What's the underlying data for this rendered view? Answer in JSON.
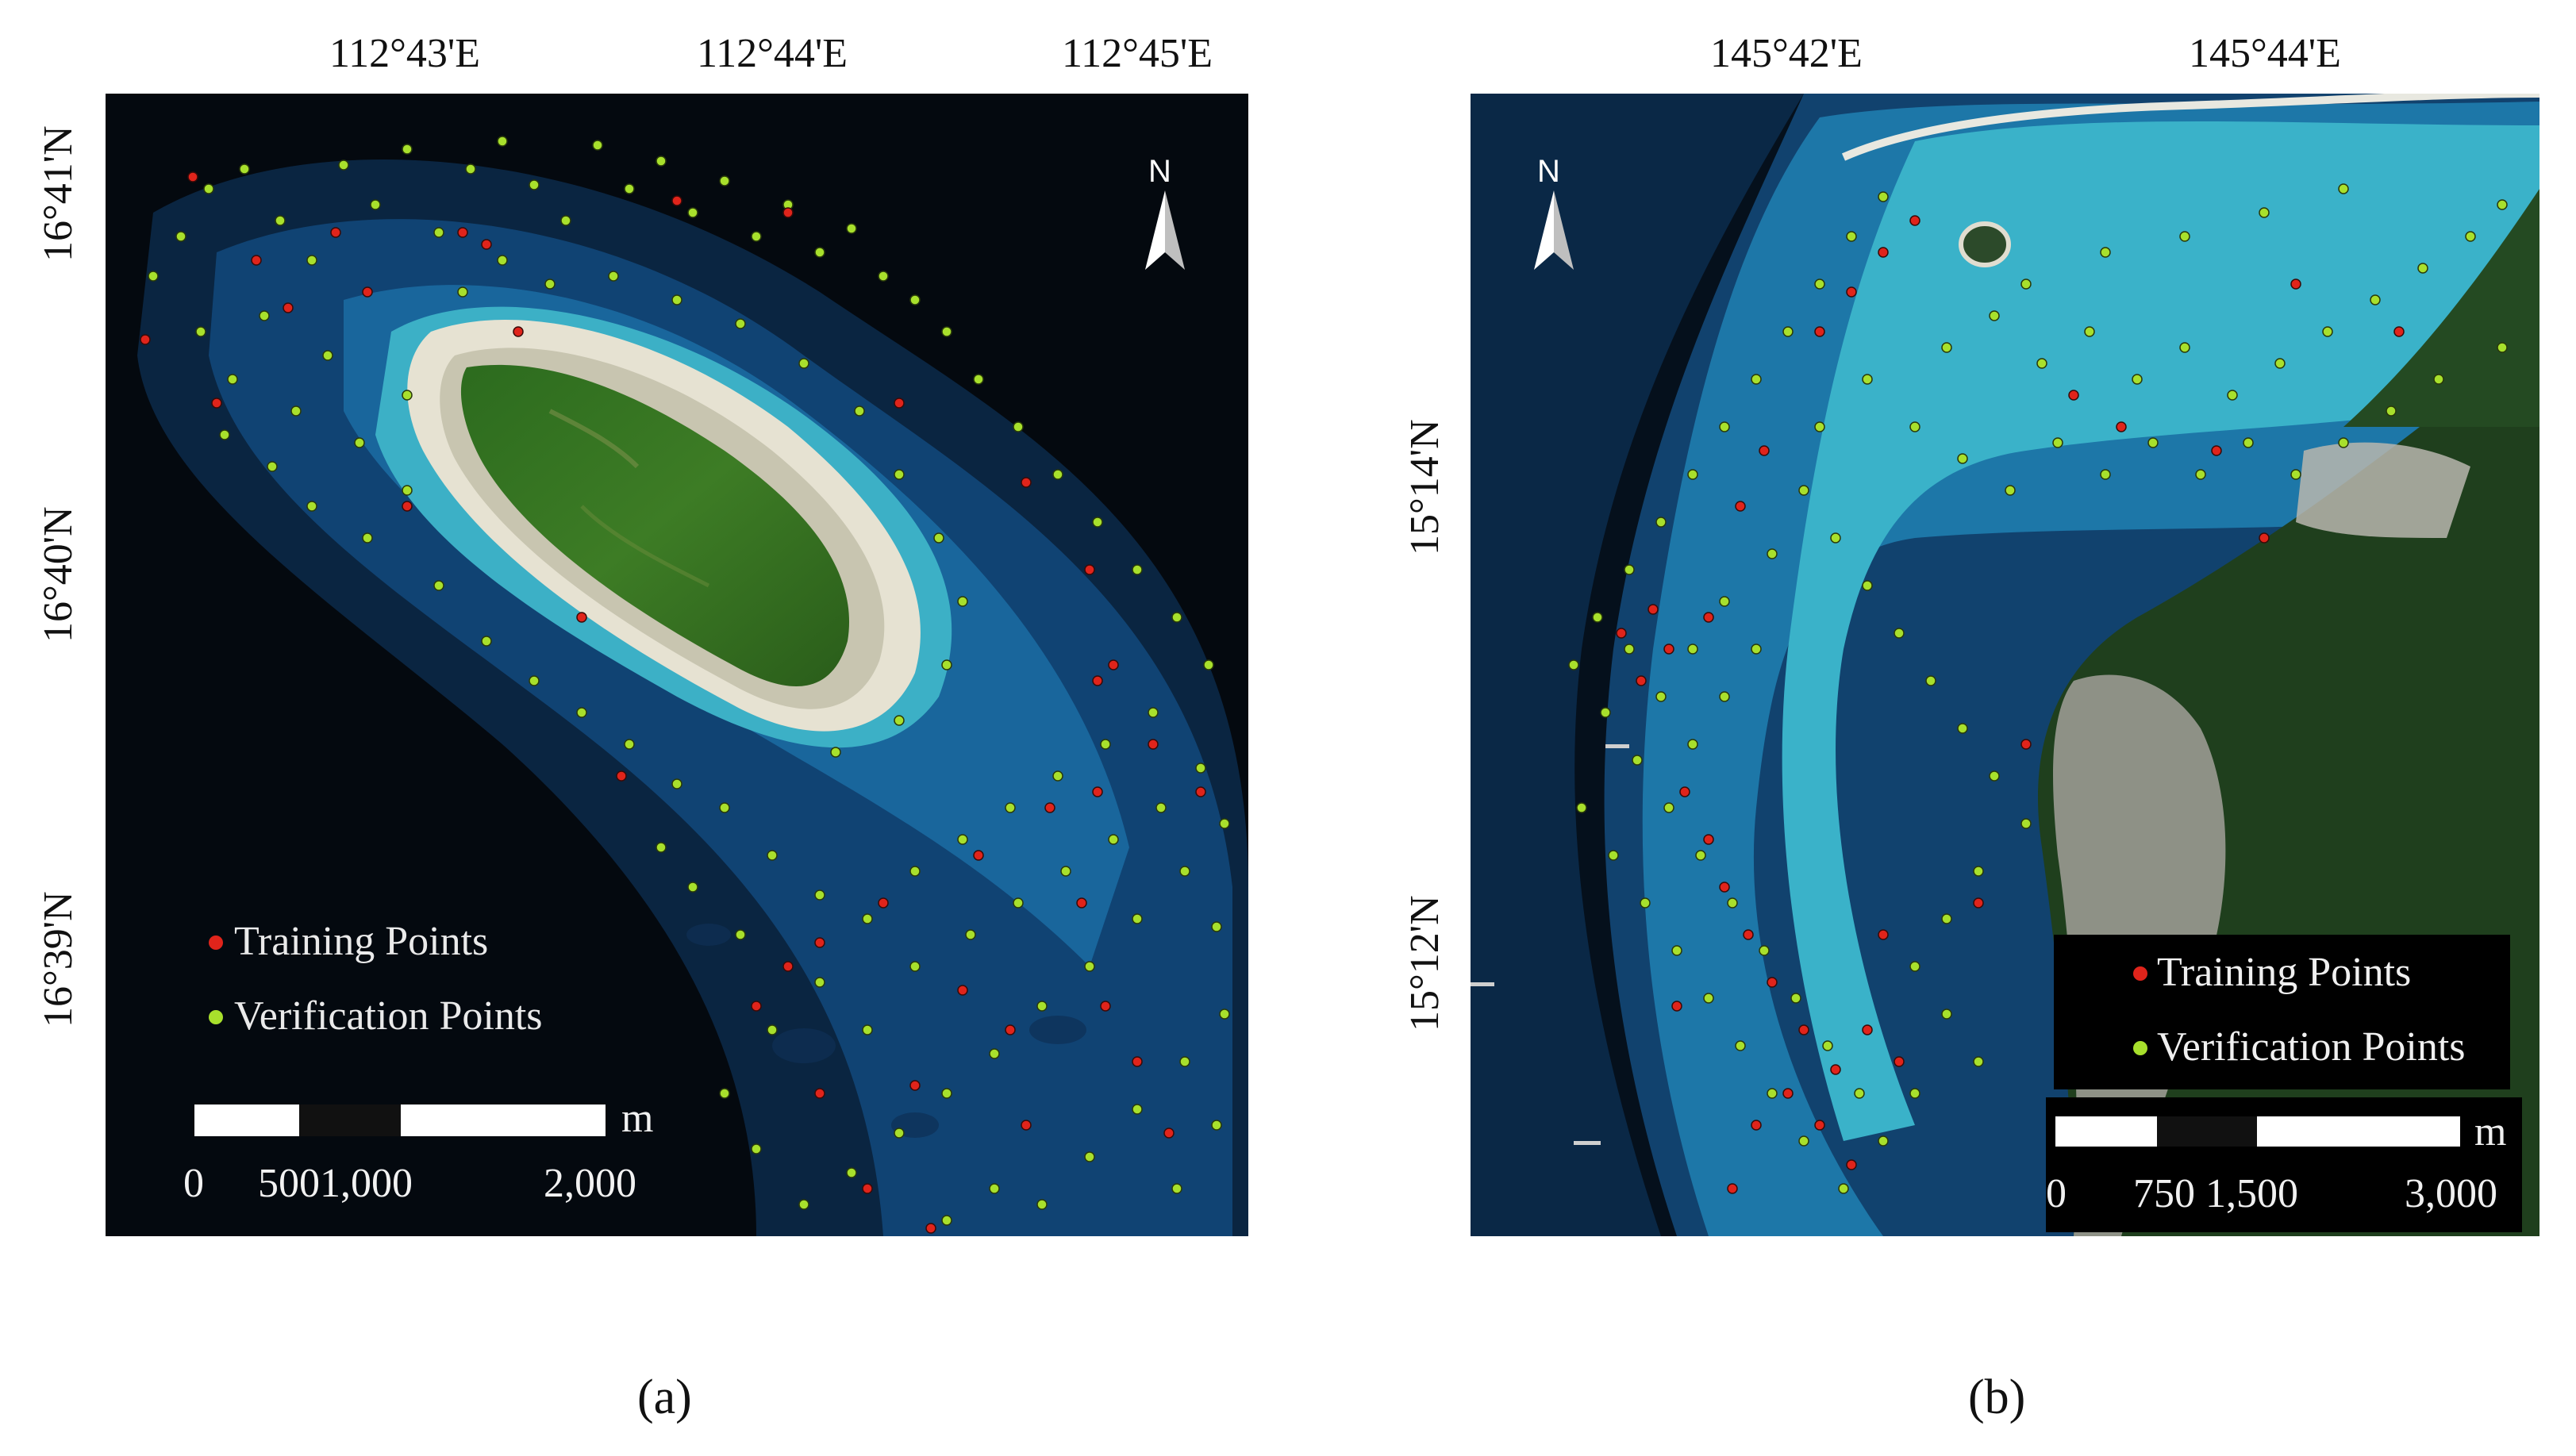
{
  "panels": {
    "a": {
      "caption": "(a)",
      "lon_labels": [
        "112°43'E",
        "112°44'E",
        "112°45'E"
      ],
      "lat_labels": [
        "16°41'N",
        "16°40'N",
        "16°39'N"
      ],
      "north": "N",
      "legend": {
        "training": "Training Points",
        "verification": "Verification Points"
      },
      "scale": {
        "unit": "m",
        "ticks": [
          "0",
          "5001,000",
          "2,000"
        ]
      }
    },
    "b": {
      "caption": "(b)",
      "lon_labels": [
        "145°42'E",
        "145°44'E"
      ],
      "lat_labels": [
        "15°14'N",
        "15°12'N"
      ],
      "north": "N",
      "legend": {
        "training": "Training Points",
        "verification": "Verification Points"
      },
      "scale": {
        "unit": "m",
        "ticks": [
          "0",
          "750 1,500",
          "3,000"
        ]
      }
    }
  },
  "colors": {
    "training": "#e0241b",
    "verification": "#a8e02c"
  }
}
